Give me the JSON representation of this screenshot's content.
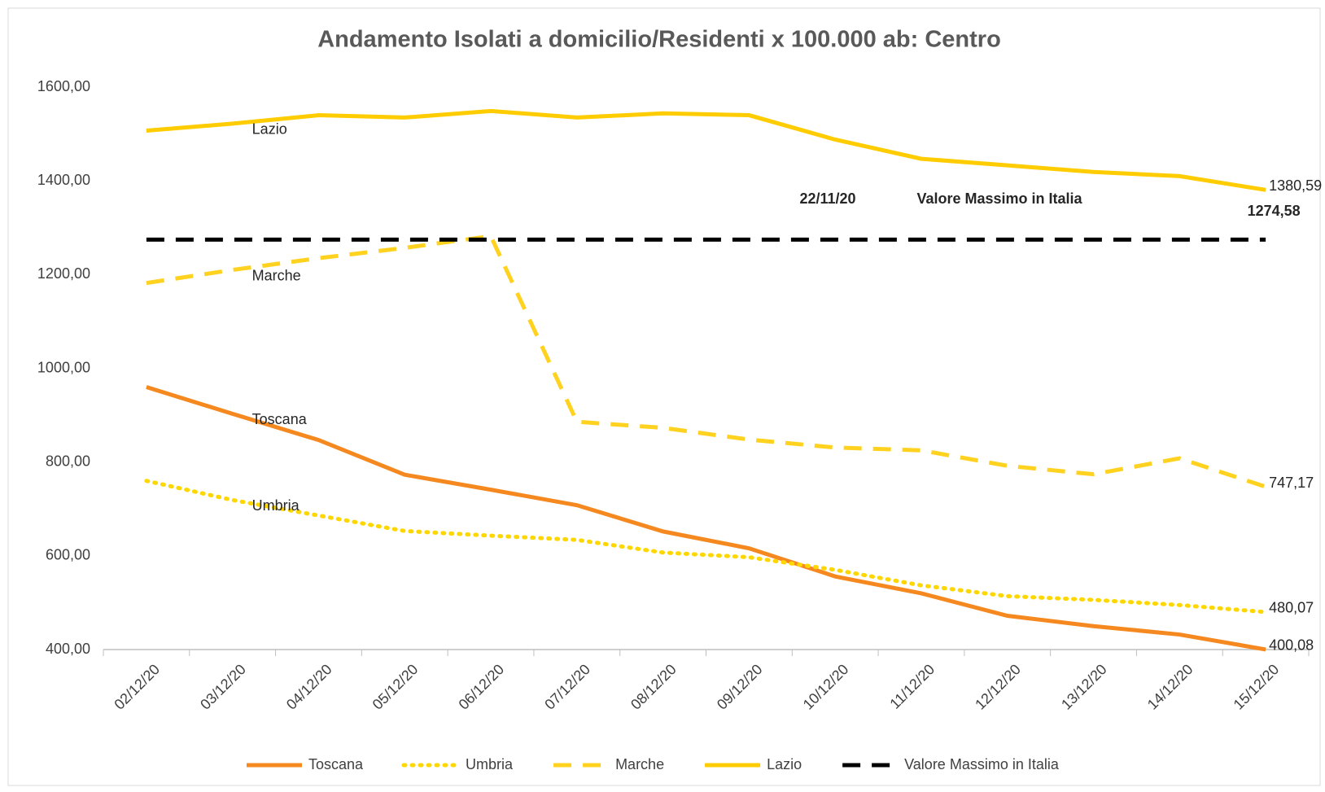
{
  "chart_data": {
    "type": "line",
    "title": "Andamento Isolati a domicilio/Residenti x 100.000 ab: Centro",
    "categories": [
      "02/12/20",
      "03/12/20",
      "04/12/20",
      "05/12/20",
      "06/12/20",
      "07/12/20",
      "08/12/20",
      "09/12/20",
      "10/12/20",
      "11/12/20",
      "12/12/20",
      "13/12/20",
      "14/12/20",
      "15/12/20"
    ],
    "series": [
      {
        "name": "Toscana",
        "color": "#f5891f",
        "dash": "solid",
        "values": [
          960,
          903,
          847,
          773,
          741,
          708,
          652,
          616,
          556,
          520,
          472,
          450,
          432,
          400.08
        ],
        "value_labels": [
          null,
          null,
          null,
          null,
          null,
          null,
          null,
          null,
          null,
          null,
          null,
          null,
          null,
          "400,08"
        ]
      },
      {
        "name": "Umbria",
        "color": "#ffd700",
        "dash": "dotted",
        "values": [
          760,
          719,
          686,
          653,
          643,
          634,
          607,
          597,
          570,
          537,
          514,
          506,
          495,
          480.07
        ],
        "value_labels": [
          null,
          null,
          null,
          null,
          null,
          null,
          null,
          null,
          null,
          null,
          null,
          null,
          null,
          "480,07"
        ]
      },
      {
        "name": "Marche",
        "color": "#ffd21f",
        "dash": "dashed",
        "values": [
          1182,
          1210,
          1235,
          1257,
          1282,
          886,
          873,
          848,
          831,
          825,
          792,
          774,
          808,
          747.17
        ],
        "value_labels": [
          null,
          null,
          null,
          null,
          null,
          null,
          null,
          null,
          null,
          null,
          null,
          null,
          null,
          "747,17"
        ]
      },
      {
        "name": "Lazio",
        "color": "#ffcc00",
        "dash": "solid",
        "values": [
          1507,
          1522,
          1540,
          1535,
          1549,
          1535,
          1544,
          1540,
          1488,
          1447,
          1433,
          1419,
          1410,
          1380.59
        ],
        "value_labels": [
          null,
          null,
          null,
          null,
          null,
          null,
          null,
          null,
          null,
          null,
          null,
          null,
          null,
          "1380,59"
        ]
      },
      {
        "name": "Valore Massimo in Italia",
        "color": "#000000",
        "dash": "dashed",
        "values": [
          1274.58,
          1274.58,
          1274.58,
          1274.58,
          1274.58,
          1274.58,
          1274.58,
          1274.58,
          1274.58,
          1274.58,
          1274.58,
          1274.58,
          1274.58,
          1274.58
        ],
        "value_labels": [
          null,
          null,
          null,
          null,
          null,
          null,
          null,
          null,
          null,
          null,
          null,
          null,
          null,
          "1274,58"
        ]
      }
    ],
    "annotations": [
      "22/11/20",
      "Valore Massimo in Italia"
    ],
    "ylim": [
      400,
      1600
    ],
    "yticks": [
      {
        "value": 400,
        "label": "400,00"
      },
      {
        "value": 600,
        "label": "600,00"
      },
      {
        "value": 800,
        "label": "800,00"
      },
      {
        "value": 1000,
        "label": "1000,00"
      },
      {
        "value": 1200,
        "label": "1200,00"
      },
      {
        "value": 1400,
        "label": "1400,00"
      },
      {
        "value": 1600,
        "label": "1600,00"
      }
    ],
    "grid": false,
    "legend": "bottom"
  }
}
